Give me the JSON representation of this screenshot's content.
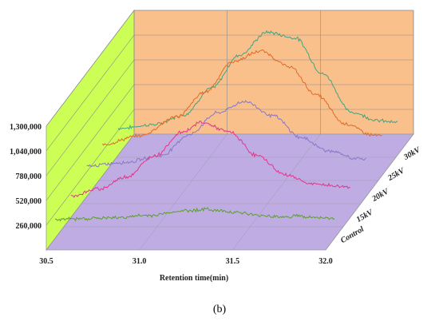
{
  "panel_label": "(b)",
  "chart_data": {
    "type": "line",
    "style": "3d-waterfall",
    "xlabel": "Retention time(min)",
    "ylabel": "",
    "x_ticks": [
      "30.5",
      "31.0",
      "31.5",
      "32.0"
    ],
    "xlim": [
      30.5,
      32.0
    ],
    "y_ticks": [
      "260,000",
      "520,000",
      "780,000",
      "1,040,000",
      "1,300,000"
    ],
    "ylim": [
      0,
      1300000
    ],
    "grid": true,
    "walls": {
      "back": "#F9C08C",
      "side": "#CCFF55",
      "floor": "#BCA8E0"
    },
    "series": [
      {
        "name": "Control",
        "color": "#5AA02C",
        "points": [
          [
            30.5,
            200000
          ],
          [
            30.8,
            215000
          ],
          [
            31.0,
            240000
          ],
          [
            31.2,
            290000
          ],
          [
            31.3,
            305000
          ],
          [
            31.45,
            280000
          ],
          [
            31.6,
            240000
          ],
          [
            31.75,
            225000
          ],
          [
            31.8,
            240000
          ],
          [
            31.85,
            222000
          ],
          [
            32.0,
            210000
          ]
        ]
      },
      {
        "name": "15kV",
        "color": "#E0368C",
        "points": [
          [
            30.5,
            225000
          ],
          [
            30.65,
            300000
          ],
          [
            30.8,
            430000
          ],
          [
            30.95,
            650000
          ],
          [
            31.1,
            900000
          ],
          [
            31.2,
            1000000
          ],
          [
            31.35,
            900000
          ],
          [
            31.5,
            650000
          ],
          [
            31.65,
            450000
          ],
          [
            31.8,
            350000
          ],
          [
            32.0,
            320000
          ]
        ]
      },
      {
        "name": "20kV",
        "color": "#8878C8",
        "points": [
          [
            30.5,
            320000
          ],
          [
            30.7,
            360000
          ],
          [
            30.9,
            430000
          ],
          [
            31.05,
            650000
          ],
          [
            31.2,
            880000
          ],
          [
            31.35,
            1000000
          ],
          [
            31.5,
            850000
          ],
          [
            31.65,
            620000
          ],
          [
            31.8,
            480000
          ],
          [
            31.95,
            400000
          ],
          [
            32.0,
            395000
          ]
        ]
      },
      {
        "name": "25kV",
        "color": "#E06A24",
        "points": [
          [
            30.5,
            330000
          ],
          [
            30.7,
            420000
          ],
          [
            30.9,
            620000
          ],
          [
            31.05,
            880000
          ],
          [
            31.2,
            1200000
          ],
          [
            31.35,
            1310000
          ],
          [
            31.5,
            1150000
          ],
          [
            31.65,
            850000
          ],
          [
            31.8,
            550000
          ],
          [
            31.95,
            430000
          ],
          [
            32.0,
            420000
          ]
        ]
      },
      {
        "name": "30kV",
        "color": "#3EA583",
        "points": [
          [
            30.5,
            280000
          ],
          [
            30.7,
            320000
          ],
          [
            30.85,
            420000
          ],
          [
            31.0,
            700000
          ],
          [
            31.15,
            1050000
          ],
          [
            31.3,
            1290000
          ],
          [
            31.45,
            1230000
          ],
          [
            31.6,
            850000
          ],
          [
            31.75,
            450000
          ],
          [
            31.9,
            360000
          ],
          [
            32.0,
            340000
          ]
        ]
      }
    ]
  }
}
